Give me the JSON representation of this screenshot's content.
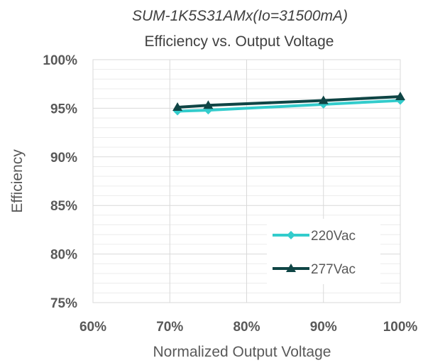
{
  "chart_data": {
    "type": "line",
    "title_line1": "SUM-1K5S31AMx(Io=31500mA)",
    "title_line2": "Efficiency vs. Output Voltage",
    "xlabel": "Normalized Output Voltage",
    "ylabel": "Efficiency",
    "xlim": [
      60,
      100
    ],
    "ylim": [
      75,
      100
    ],
    "x_ticks": [
      "60%",
      "70%",
      "80%",
      "90%",
      "100%"
    ],
    "y_ticks": [
      "75%",
      "80%",
      "85%",
      "90%",
      "95%",
      "100%"
    ],
    "grid": true,
    "legend_position": "bottom-right",
    "series": [
      {
        "name": "220Vac",
        "color": "#33CCCC",
        "marker": "diamond",
        "x": [
          71,
          75,
          90,
          100
        ],
        "y": [
          94.7,
          94.8,
          95.4,
          95.8
        ]
      },
      {
        "name": "277Vac",
        "color": "#0F4545",
        "marker": "triangle",
        "x": [
          71,
          75,
          90,
          100
        ],
        "y": [
          95.1,
          95.3,
          95.8,
          96.2
        ]
      }
    ]
  }
}
